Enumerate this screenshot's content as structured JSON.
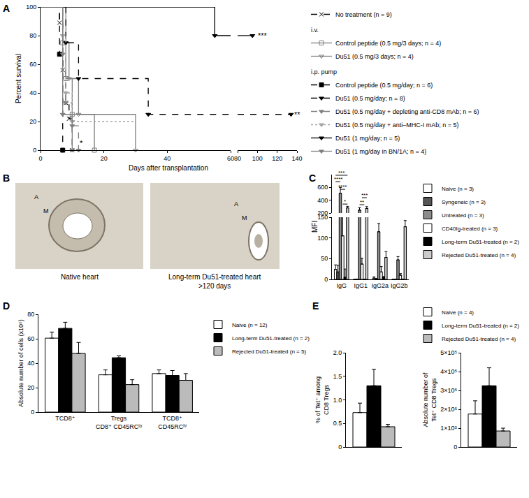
{
  "chart_data": [
    {
      "label": "A",
      "type": "line",
      "ylabel": "Percent survival",
      "xlabel": "Days after transplantation",
      "xlim": [
        0,
        140
      ],
      "xticks": [
        0,
        20,
        40,
        60,
        80,
        100,
        120,
        140
      ],
      "axis_break": [
        60,
        80
      ],
      "ylim": [
        0,
        100
      ],
      "yticks": [
        0,
        20,
        40,
        60,
        80,
        100
      ],
      "series": [
        {
          "name": "No treatment (n = 9)",
          "color": "#000000",
          "marker": "x",
          "line_style": "dash",
          "x": [
            0,
            6,
            7,
            8,
            9,
            10
          ],
          "values": [
            100,
            89,
            56,
            33,
            22,
            0
          ]
        },
        {
          "name": "Control peptide (0.5 mg/3 days; n = 4)",
          "group": "i.v.",
          "color": "#7f7f7f",
          "marker": "square-open",
          "line_style": "solid",
          "x": [
            0,
            7,
            8,
            10,
            17
          ],
          "values": [
            100,
            75,
            50,
            25,
            0
          ]
        },
        {
          "name": "Du51 (0.5 mg/3 days; n = 4)",
          "group": "i.v.",
          "color": "#7f7f7f",
          "marker": "triangle-down-open",
          "line_style": "solid",
          "x": [
            0,
            8,
            9,
            12,
            30
          ],
          "values": [
            100,
            75,
            50,
            25,
            0
          ]
        },
        {
          "name": "Control peptide (0.5 mg/day; n = 6)",
          "group": "i.p. pump",
          "color": "#000000",
          "marker": "square",
          "line_style": "dash",
          "x": [
            0,
            6,
            7
          ],
          "values": [
            100,
            67,
            0
          ]
        },
        {
          "name": "Du51 (0.5 mg/day; n = 8)",
          "group": "i.p. pump",
          "color": "#000000",
          "marker": "triangle-down",
          "line_style": "dash",
          "x": [
            0,
            8,
            12,
            34,
            134
          ],
          "values": [
            100,
            75,
            50,
            25,
            25
          ]
        },
        {
          "name": "Du51 (0.5 mg/day + depleting anti-CD8 mAb; n = 6)",
          "group": "i.p. pump",
          "color": "#7f7f7f",
          "marker": "triangle-down",
          "line_style": "dash",
          "x": [
            0,
            7,
            8,
            10,
            12
          ],
          "values": [
            100,
            67,
            33,
            17,
            0
          ]
        },
        {
          "name": "Du51 (0.5 mg/day + anti–MHC-I mAb; n = 5)",
          "group": "i.p. pump",
          "color": "#a6a6a6",
          "marker": "triangle-down",
          "line_style": "dot",
          "x": [
            0,
            7,
            8,
            10,
            30
          ],
          "values": [
            100,
            80,
            40,
            20,
            0
          ]
        },
        {
          "name": "Du51 (1 mg/day; n = 5)",
          "group": "i.p. pump",
          "color": "#000000",
          "marker": "triangle-down",
          "line_style": "solid",
          "x": [
            0,
            55,
            95
          ],
          "values": [
            100,
            80,
            80
          ]
        },
        {
          "name": "Du51 (1 mg/day in BN/1A; n = 4)",
          "group": "i.p. pump",
          "color": "#7f7f7f",
          "marker": "triangle-down",
          "line_style": "solid",
          "x": [
            0,
            7,
            10
          ],
          "values": [
            100,
            25,
            0
          ]
        }
      ],
      "annotations": [
        {
          "text": "***",
          "x": 99,
          "y": 80
        },
        {
          "text": "**",
          "x": 136,
          "y": 25
        },
        {
          "text": "*",
          "x": 12,
          "y": 5
        }
      ]
    },
    {
      "label": "B",
      "type": "image",
      "panels": [
        {
          "caption": "Native heart",
          "marks": [
            "A",
            "M"
          ]
        },
        {
          "caption": "Long-term Du51-treated heart\n>120 days",
          "marks": [
            "A",
            "M"
          ]
        }
      ]
    },
    {
      "label": "C",
      "type": "bar",
      "ylabel": "MFI",
      "categories": [
        "IgG",
        "IgG1",
        "IgG2a",
        "IgG2b"
      ],
      "ylim": [
        0,
        800
      ],
      "yticks": [
        0,
        50,
        100,
        150,
        200,
        400,
        600
      ],
      "axis_break": [
        150,
        200
      ],
      "series": [
        {
          "name": "Naive (n = 3)",
          "color": "#ffffff",
          "values": [
            24,
            0,
            3,
            0
          ],
          "errors": [
            11,
            0,
            3,
            0
          ]
        },
        {
          "name": "Syngeneic (n = 3)",
          "color": "#555555",
          "values": [
            18,
            0,
            1,
            0
          ],
          "errors": [
            16,
            0,
            1,
            0
          ]
        },
        {
          "name": "Untreated (n = 3)",
          "color": "#8c8c8c",
          "values": [
            510,
            245,
            115,
            47
          ],
          "errors": [
            90,
            40,
            20,
            8
          ]
        },
        {
          "name": "CD40Ig-treated (n = 3)",
          "color": "#ffffff",
          "values": [
            105,
            37,
            18,
            10
          ],
          "errors": [
            48,
            14,
            13,
            4
          ]
        },
        {
          "name": "Long-term Du51-treated (n = 2)",
          "color": "#000000",
          "values": [
            5,
            0,
            5,
            0
          ],
          "errors": [
            20,
            0,
            2,
            0
          ]
        },
        {
          "name": "Rejected Du51-treated (n = 4)",
          "color": "#cccccc",
          "values": [
            280,
            270,
            53,
            127
          ],
          "errors": [
            25,
            30,
            14,
            15
          ]
        }
      ],
      "significance": [
        {
          "category": "IgG",
          "from": 0,
          "to": 5,
          "y": 790,
          "label": "***"
        },
        {
          "category": "IgG",
          "from": 0,
          "to": 2,
          "y": 690,
          "label": "****"
        },
        {
          "category": "IgG",
          "from": 2,
          "to": 4,
          "y": 570,
          "label": "****"
        },
        {
          "category": "IgG",
          "from": 3,
          "to": 5,
          "y": 340,
          "label": "*"
        },
        {
          "category": "IgG1",
          "from": 2,
          "to": 4,
          "y": 330,
          "label": "**"
        },
        {
          "category": "IgG1",
          "from": 3,
          "to": 5,
          "y": 440,
          "label": "***"
        }
      ]
    },
    {
      "label": "D",
      "type": "bar",
      "ylabel": "Absolute number of cells (x10⁶)",
      "categories": [
        "TCD8⁺",
        "Tregs\nCD8⁺ CD45RCˡᵒ",
        "TCD8⁺\nCD45RCʰⁱ"
      ],
      "ylim": [
        0,
        80
      ],
      "yticks": [
        0,
        20,
        40,
        60,
        80
      ],
      "series": [
        {
          "name": "Naive (n = 12)",
          "color": "#ffffff",
          "values": [
            60.5,
            30.5,
            31.5
          ],
          "errors": [
            5,
            4,
            3
          ]
        },
        {
          "name": "Long-term Du51-treated (n = 2)",
          "color": "#000000",
          "values": [
            68.5,
            44.5,
            30
          ],
          "errors": [
            5,
            1.5,
            4
          ]
        },
        {
          "name": "Rejected Du51-treated (n = 5)",
          "color": "#bbbbbb",
          "values": [
            48,
            22.5,
            26
          ],
          "errors": [
            9,
            4,
            5.5
          ]
        }
      ]
    },
    {
      "label": "E",
      "type": "bar",
      "tick_labels": "y",
      "series": [
        {
          "name": "Naive (n = 4)",
          "color": "#ffffff"
        },
        {
          "name": "Long-term Du51-treated (n = 2)",
          "color": "#000000"
        },
        {
          "name": "Rejected Du51-treated (n = 4)",
          "color": "#bbbbbb"
        }
      ],
      "panels": [
        {
          "ylabel": "% of Tet⁺ among\nCD8 Tregs",
          "ylim": [
            0,
            2
          ],
          "yticks": [
            0,
            0.5,
            {
              "value": 1,
              "label": "1.0"
            },
            1.5,
            {
              "value": 2,
              "label": "2.0"
            }
          ],
          "values": [
            0.73,
            1.3,
            0.43
          ],
          "errors": [
            0.2,
            0.35,
            0.05
          ]
        },
        {
          "ylabel": "Absolute number of\nTet⁺ CD8 Tregs",
          "ylim": [
            0,
            500000
          ],
          "yticks": [
            0,
            {
              "value": 100000,
              "label": "1×10⁵"
            },
            {
              "value": 200000,
              "label": "2×10⁵"
            },
            {
              "value": 300000,
              "label": "3×10⁵"
            },
            {
              "value": 400000,
              "label": "4×10⁵"
            },
            {
              "value": 500000,
              "label": "5×10⁵"
            }
          ],
          "values": [
            175000,
            325000,
            85000
          ],
          "errors": [
            70000,
            95000,
            15000
          ]
        }
      ]
    }
  ]
}
